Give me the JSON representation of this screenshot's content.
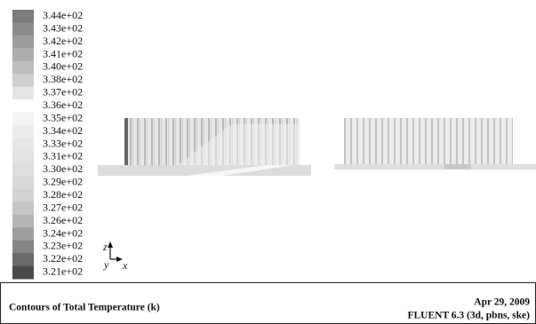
{
  "colorbar": [
    {
      "label": "3.44e+02",
      "color": "#7b7b7b"
    },
    {
      "label": "3.43e+02",
      "color": "#8c8c8c"
    },
    {
      "label": "3.42e+02",
      "color": "#9c9c9c"
    },
    {
      "label": "3.41e+02",
      "color": "#adadad"
    },
    {
      "label": "3.40e+02",
      "color": "#bdbdbd"
    },
    {
      "label": "3.38e+02",
      "color": "#cecece"
    },
    {
      "label": "3.37e+02",
      "color": "#e4e4e4"
    },
    {
      "label": "3.36e+02",
      "color": "#ffffff"
    },
    {
      "label": "3.35e+02",
      "color": "#f4f4f4"
    },
    {
      "label": "3.34e+02",
      "color": "#ececec"
    },
    {
      "label": "3.33e+02",
      "color": "#e6e6e6"
    },
    {
      "label": "3.31e+02",
      "color": "#e2e2e2"
    },
    {
      "label": "3.30e+02",
      "color": "#dedede"
    },
    {
      "label": "3.29e+02",
      "color": "#d9d9d9"
    },
    {
      "label": "3.28e+02",
      "color": "#d2d2d2"
    },
    {
      "label": "3.27e+02",
      "color": "#c6c6c6"
    },
    {
      "label": "3.26e+02",
      "color": "#b5b5b5"
    },
    {
      "label": "3.24e+02",
      "color": "#9e9e9e"
    },
    {
      "label": "3.23e+02",
      "color": "#858585"
    },
    {
      "label": "3.22e+02",
      "color": "#6a6a6a"
    },
    {
      "label": "3.21e+02",
      "color": "#4a4a4a"
    }
  ],
  "axes": {
    "z": "z",
    "y": "y",
    "x": "x"
  },
  "footer": {
    "title": "Contours of Total Temperature (k)",
    "date": "Apr 29, 2009",
    "solver": "FLUENT 6.3 (3d, pbns, ske)"
  }
}
